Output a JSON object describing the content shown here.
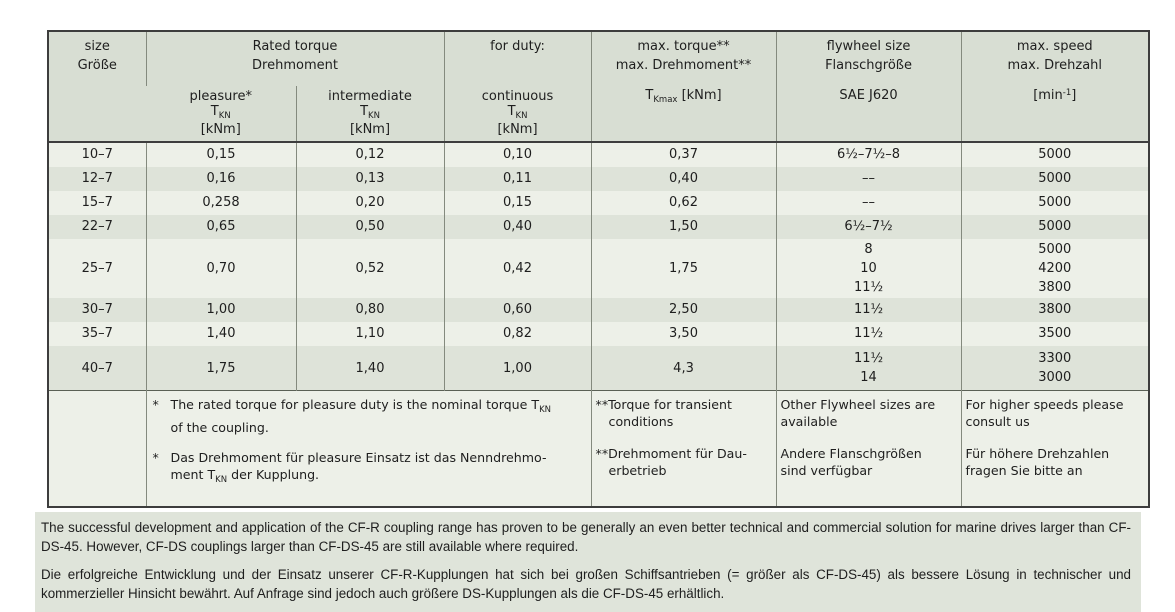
{
  "table": {
    "header": {
      "size_l1": "size",
      "size_l2": "Größe",
      "rated_l1": "Rated torque",
      "rated_l2": "Drehmoment",
      "duty_l1": "for duty:",
      "maxtorque_l1": "max. torque**",
      "maxtorque_l2": "max. Drehmoment**",
      "maxtorque_sym_pre": "T",
      "maxtorque_sym_sub": "Kmax",
      "maxtorque_sym_post": " [kNm]",
      "flywheel_l1": "flywheel size",
      "flywheel_l2": "Flanschgröße",
      "flywheel_l3": "SAE J620",
      "speed_l1": "max. speed",
      "speed_l2": "max. Drehzahl",
      "speed_unit_pre": "[min",
      "speed_unit_sup": "-1",
      "speed_unit_post": "]",
      "pleasure_label": "pleasure*",
      "intermediate_label": "intermediate",
      "continuous_label": "continuous",
      "t_sym": "T",
      "t_sub": "KN",
      "t_unit": "[kNm]"
    },
    "rows": [
      {
        "size": "10–7",
        "pleasure": "0,15",
        "intermediate": "0,12",
        "continuous": "0,10",
        "maxtorque": "0,37",
        "flywheel": [
          "6½–7½–8"
        ],
        "speed": [
          "5000"
        ]
      },
      {
        "size": "12–7",
        "pleasure": "0,16",
        "intermediate": "0,13",
        "continuous": "0,11",
        "maxtorque": "0,40",
        "flywheel": [
          "––"
        ],
        "speed": [
          "5000"
        ]
      },
      {
        "size": "15–7",
        "pleasure": "0,258",
        "intermediate": "0,20",
        "continuous": "0,15",
        "maxtorque": "0,62",
        "flywheel": [
          "––"
        ],
        "speed": [
          "5000"
        ]
      },
      {
        "size": "22–7",
        "pleasure": "0,65",
        "intermediate": "0,50",
        "continuous": "0,40",
        "maxtorque": "1,50",
        "flywheel": [
          "6½–7½"
        ],
        "speed": [
          "5000"
        ]
      },
      {
        "size": "25–7",
        "pleasure": "0,70",
        "intermediate": "0,52",
        "continuous": "0,42",
        "maxtorque": "1,75",
        "flywheel": [
          "8",
          "10",
          "11½"
        ],
        "speed": [
          "5000",
          "4200",
          "3800"
        ]
      },
      {
        "size": "30–7",
        "pleasure": "1,00",
        "intermediate": "0,80",
        "continuous": "0,60",
        "maxtorque": "2,50",
        "flywheel": [
          "11½"
        ],
        "speed": [
          "3800"
        ]
      },
      {
        "size": "35–7",
        "pleasure": "1,40",
        "intermediate": "1,10",
        "continuous": "0,82",
        "maxtorque": "3,50",
        "flywheel": [
          "11½"
        ],
        "speed": [
          "3500"
        ]
      },
      {
        "size": "40–7",
        "pleasure": "1,75",
        "intermediate": "1,40",
        "continuous": "1,00",
        "maxtorque": "4,3",
        "flywheel": [
          "11½",
          "14"
        ],
        "speed": [
          "3300",
          "3000"
        ]
      }
    ],
    "footnotes": {
      "star_marker": "*",
      "star_en_l1": "The rated torque for pleasure duty is the nominal torque T",
      "star_en_l1_sub": "KN",
      "star_en_l2": "of the coupling.",
      "star_de_l1": "Das Drehmoment für pleasure Einsatz ist das Nenndrehmo-",
      "star_de_l2_pre": "ment T",
      "star_de_l2_sub": "KN",
      "star_de_l2_post": " der Kupplung.",
      "maxtorque_en_l1": "**Torque for transient",
      "maxtorque_en_l2": "conditions",
      "maxtorque_de_l1": "**Drehmoment für Dau-",
      "maxtorque_de_l2": "erbetrieb",
      "flywheel_en_l1": "Other Flywheel sizes are",
      "flywheel_en_l2": "available",
      "flywheel_de_l1": "Andere Flanschgrößen",
      "flywheel_de_l2": "sind verfügbar",
      "speed_en_l1": "For higher speeds please",
      "speed_en_l2": "consult us",
      "speed_de_l1": "Für höhere Drehzahlen",
      "speed_de_l2": "fragen Sie bitte an"
    }
  },
  "paragraphs": {
    "en": "The successful development and application of the CF-R coupling range has proven to be generally an even better technical and commercial solution for marine drives larger than CF-DS-45. However, CF-DS couplings larger than CF-DS-45 are still available where required.",
    "de": "Die erfolgreiche Entwicklung und der Einsatz unserer CF-R-Kupplungen hat sich bei großen Schiffsantrieben (= größer als CF-DS-45) als bessere Lösung in technischer und kommerzieller Hinsicht bewährt. Auf Anfrage sind jedoch auch größere DS-Kupplungen als die CF-DS-45 erhältlich."
  },
  "colors": {
    "header_bg": "#d8ded3",
    "row_light": "#edf0e8",
    "row_dark": "#dee3d9",
    "paragraph_bg": "#dfe4da",
    "outer_border": "#3d3d3d",
    "inner_border": "#848a7e",
    "text": "#1e1e1e"
  }
}
